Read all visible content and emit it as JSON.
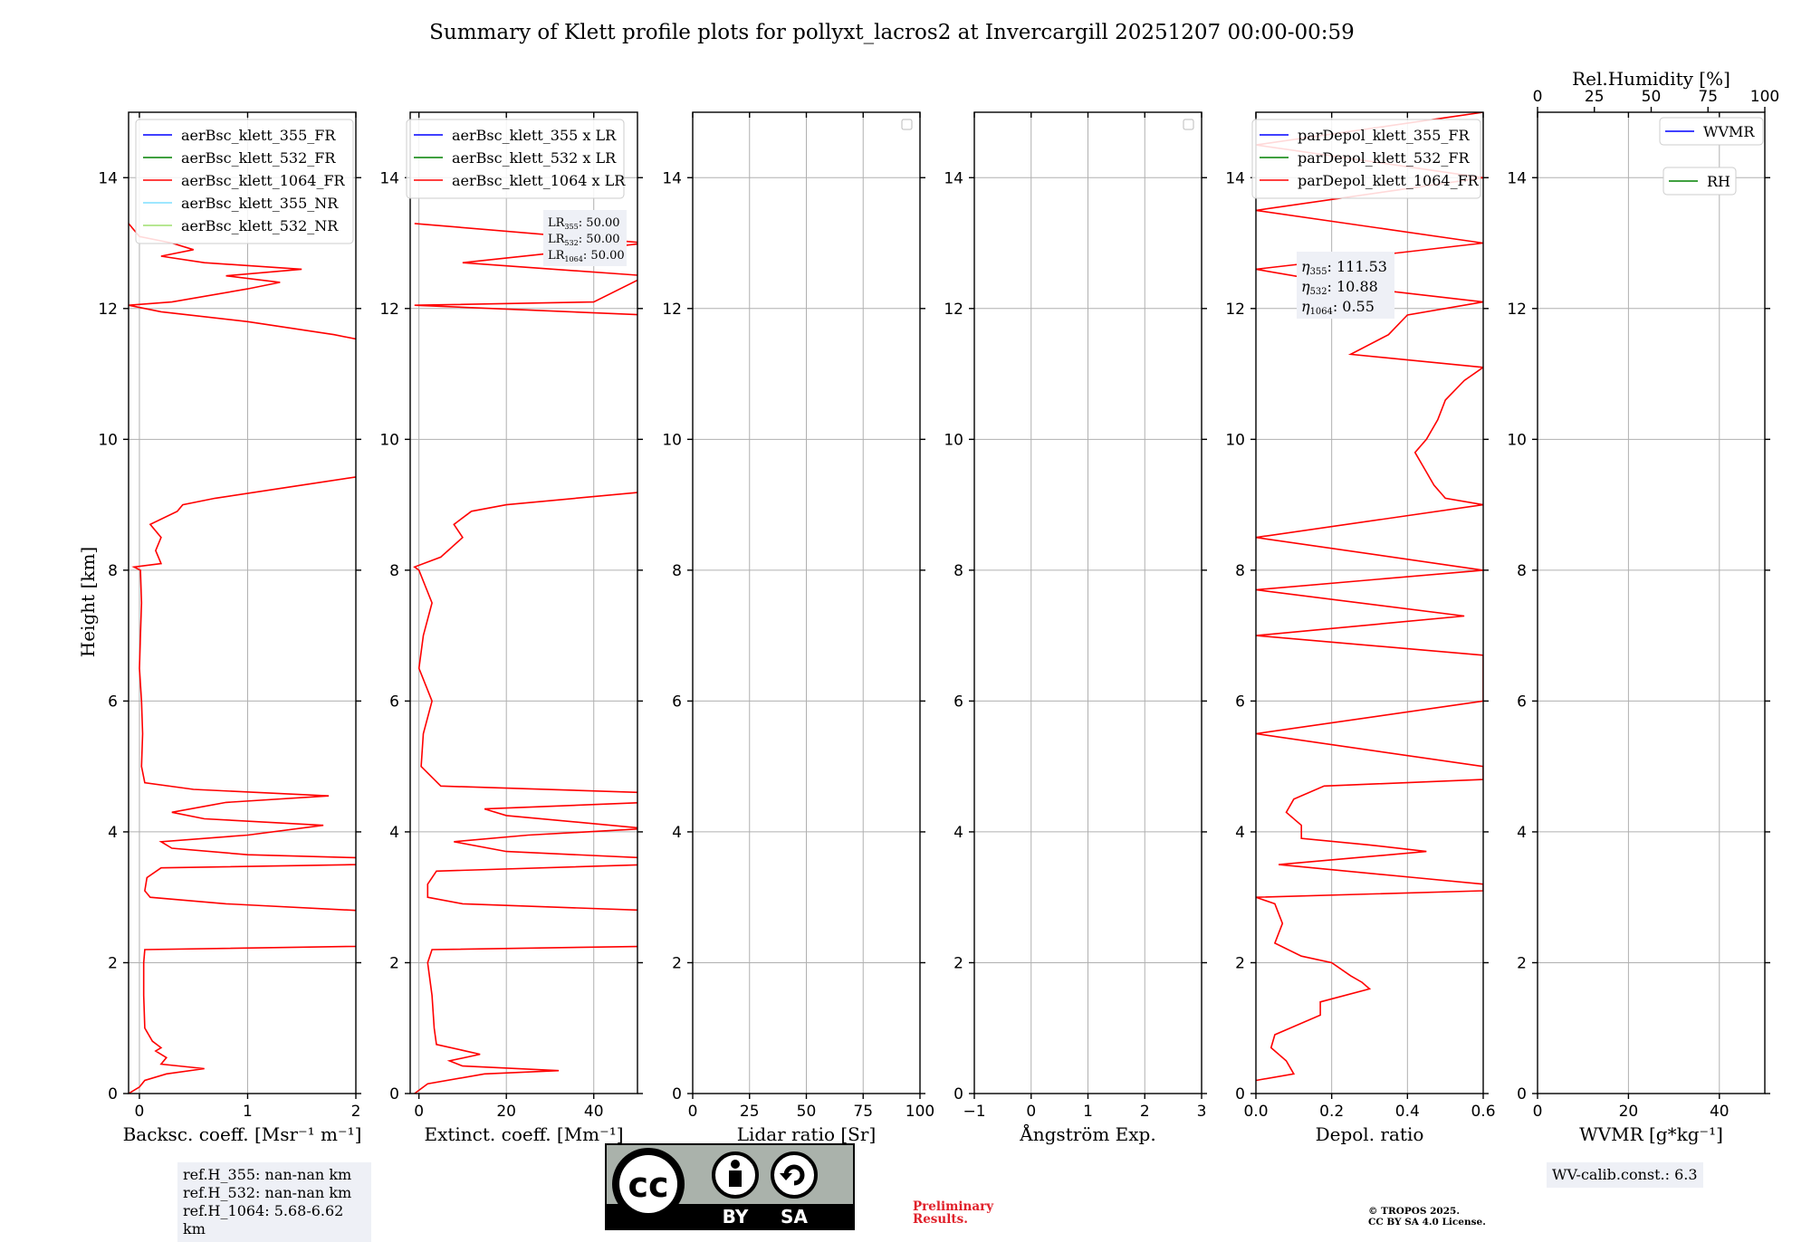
{
  "figure_title": "Summary of Klett profile plots for pollyxt_lacros2 at Invercargill 20251207 00:00-00:59",
  "colors": {
    "blue": "#0000ff",
    "green": "#008000",
    "red": "#ff0000",
    "cyan": "#7fdfff",
    "lightgreen": "#9fdf6f",
    "grid": "#b0b0b0"
  },
  "chart_data": [
    {
      "id": "backscatter",
      "type": "line",
      "xlabel": "Backsc. coeff. [Msr⁻¹ m⁻¹]",
      "ylabel": "Height [km]",
      "xlim": [
        -0.1,
        2.0
      ],
      "ylim": [
        0,
        15
      ],
      "xticks": [
        0,
        1,
        2
      ],
      "xtick_labels": [
        "0",
        "1",
        "2"
      ],
      "yticks": [
        0,
        2,
        4,
        6,
        8,
        10,
        12,
        14
      ],
      "ytick_labels": [
        "0",
        "2",
        "4",
        "6",
        "8",
        "10",
        "12",
        "14"
      ],
      "legend": [
        "aerBsc_klett_355_FR",
        "aerBsc_klett_532_FR",
        "aerBsc_klett_1064_FR",
        "aerBsc_klett_355_NR",
        "aerBsc_klett_532_NR"
      ],
      "series": [
        {
          "name": "aerBsc_klett_1064_FR",
          "color": "red",
          "profile": [
            [
              0,
              -0.1
            ],
            [
              0.1,
              0.0
            ],
            [
              0.2,
              0.05
            ],
            [
              0.3,
              0.25
            ],
            [
              0.38,
              0.6
            ],
            [
              0.45,
              0.2
            ],
            [
              0.55,
              0.25
            ],
            [
              0.65,
              0.15
            ],
            [
              0.7,
              0.2
            ],
            [
              0.8,
              0.12
            ],
            [
              1,
              0.05
            ],
            [
              1.5,
              0.04
            ],
            [
              2,
              0.04
            ],
            [
              2.2,
              0.05
            ],
            [
              2.25,
              2.0
            ],
            [
              2.3,
              2.1
            ],
            [
              2.6,
              2.1
            ],
            [
              2.8,
              2.0
            ],
            [
              2.9,
              0.8
            ],
            [
              3.0,
              0.1
            ],
            [
              3.1,
              0.05
            ],
            [
              3.3,
              0.07
            ],
            [
              3.45,
              0.2
            ],
            [
              3.5,
              2.0
            ],
            [
              3.6,
              2.1
            ],
            [
              3.65,
              1.0
            ],
            [
              3.75,
              0.3
            ],
            [
              3.85,
              0.2
            ],
            [
              3.95,
              1.0
            ],
            [
              4.1,
              1.7
            ],
            [
              4.2,
              0.6
            ],
            [
              4.3,
              0.3
            ],
            [
              4.45,
              0.8
            ],
            [
              4.55,
              1.75
            ],
            [
              4.65,
              0.5
            ],
            [
              4.75,
              0.05
            ],
            [
              5,
              0.02
            ],
            [
              5.5,
              0.03
            ],
            [
              6,
              0.02
            ],
            [
              6.5,
              0.0
            ],
            [
              7,
              0.01
            ],
            [
              7.5,
              0.02
            ],
            [
              8,
              0.01
            ],
            [
              8.05,
              -0.05
            ],
            [
              8.1,
              0.2
            ],
            [
              8.3,
              0.15
            ],
            [
              8.5,
              0.2
            ],
            [
              8.7,
              0.1
            ],
            [
              8.9,
              0.35
            ],
            [
              9.0,
              0.4
            ],
            [
              9.1,
              0.7
            ],
            [
              9.3,
              1.5
            ],
            [
              9.45,
              2.1
            ],
            [
              9.5,
              2.1
            ],
            [
              11.5,
              2.1
            ],
            [
              11.6,
              1.8
            ],
            [
              11.8,
              1.0
            ],
            [
              11.95,
              0.2
            ],
            [
              12.05,
              -0.1
            ],
            [
              12.1,
              0.3
            ],
            [
              12.3,
              1.0
            ],
            [
              12.4,
              1.3
            ],
            [
              12.5,
              0.8
            ],
            [
              12.6,
              1.5
            ],
            [
              12.7,
              0.6
            ],
            [
              12.8,
              0.2
            ],
            [
              12.9,
              0.5
            ],
            [
              13.0,
              0.3
            ],
            [
              13.1,
              0.0
            ],
            [
              13.3,
              -0.1
            ]
          ]
        }
      ]
    },
    {
      "id": "extinction",
      "type": "line",
      "xlabel": "Extinct. coeff. [Mm⁻¹]",
      "xlim": [
        -2,
        50
      ],
      "ylim": [
        0,
        15
      ],
      "xticks": [
        0,
        20,
        40
      ],
      "xtick_labels": [
        "0",
        "20",
        "40"
      ],
      "yticks": [
        0,
        2,
        4,
        6,
        8,
        10,
        12,
        14
      ],
      "ytick_labels": [
        "0",
        "2",
        "4",
        "6",
        "8",
        "10",
        "12",
        "14"
      ],
      "legend": [
        "aerBsc_klett_355 x LR",
        "aerBsc_klett_532 x LR",
        "aerBsc_klett_1064 x LR"
      ],
      "lr_annotation": [
        {
          "sub": "355",
          "value": ": 50.00"
        },
        {
          "sub": "532",
          "value": ": 50.00"
        },
        {
          "sub": "1064",
          "value": ": 50.00"
        }
      ],
      "series": [
        {
          "name": "aerBsc_klett_1064 x LR",
          "color": "red",
          "profile": [
            [
              0,
              -1
            ],
            [
              0.15,
              2
            ],
            [
              0.3,
              15
            ],
            [
              0.35,
              32
            ],
            [
              0.42,
              10
            ],
            [
              0.5,
              7
            ],
            [
              0.6,
              14
            ],
            [
              0.75,
              4
            ],
            [
              1,
              3.5
            ],
            [
              1.5,
              3
            ],
            [
              2,
              2
            ],
            [
              2.2,
              3
            ],
            [
              2.25,
              52
            ],
            [
              2.8,
              52
            ],
            [
              2.9,
              10
            ],
            [
              3.0,
              2
            ],
            [
              3.2,
              2
            ],
            [
              3.4,
              4
            ],
            [
              3.5,
              52
            ],
            [
              3.6,
              52
            ],
            [
              3.7,
              20
            ],
            [
              3.85,
              8
            ],
            [
              3.95,
              25
            ],
            [
              4.05,
              52
            ],
            [
              4.25,
              20
            ],
            [
              4.35,
              15
            ],
            [
              4.45,
              52
            ],
            [
              4.6,
              52
            ],
            [
              4.7,
              5
            ],
            [
              5,
              0.5
            ],
            [
              5.5,
              1
            ],
            [
              6,
              3
            ],
            [
              6.5,
              0
            ],
            [
              7,
              1
            ],
            [
              7.5,
              3
            ],
            [
              8,
              0
            ],
            [
              8.05,
              -1
            ],
            [
              8.2,
              5
            ],
            [
              8.5,
              10
            ],
            [
              8.7,
              8
            ],
            [
              8.9,
              12
            ],
            [
              9.0,
              20
            ],
            [
              9.2,
              52
            ],
            [
              11.9,
              52
            ],
            [
              12.05,
              -1
            ],
            [
              12.1,
              40
            ],
            [
              12.5,
              52
            ],
            [
              12.7,
              10
            ],
            [
              13.0,
              52
            ],
            [
              13.3,
              -1
            ]
          ]
        }
      ]
    },
    {
      "id": "lidar_ratio",
      "type": "line",
      "xlabel": "Lidar ratio [Sr]",
      "xlim": [
        0,
        100
      ],
      "ylim": [
        0,
        15
      ],
      "xticks": [
        0,
        25,
        50,
        75,
        100
      ],
      "xtick_labels": [
        "0",
        "25",
        "50",
        "75",
        "100"
      ],
      "yticks": [
        0,
        2,
        4,
        6,
        8,
        10,
        12,
        14
      ],
      "ytick_labels": [
        "0",
        "2",
        "4",
        "6",
        "8",
        "10",
        "12",
        "14"
      ],
      "series": []
    },
    {
      "id": "angstrom",
      "type": "line",
      "xlabel": "Ångström Exp.",
      "xlim": [
        -1,
        3
      ],
      "ylim": [
        0,
        15
      ],
      "xticks": [
        -1,
        0,
        1,
        2,
        3
      ],
      "xtick_labels": [
        "−1",
        "0",
        "1",
        "2",
        "3"
      ],
      "yticks": [
        0,
        2,
        4,
        6,
        8,
        10,
        12,
        14
      ],
      "ytick_labels": [
        "0",
        "2",
        "4",
        "6",
        "8",
        "10",
        "12",
        "14"
      ],
      "series": []
    },
    {
      "id": "depol",
      "type": "line",
      "xlabel": "Depol. ratio",
      "xlim": [
        0,
        0.6
      ],
      "ylim": [
        0,
        15
      ],
      "xticks": [
        0,
        0.2,
        0.4,
        0.6
      ],
      "xtick_labels": [
        "0.0",
        "0.2",
        "0.4",
        "0.6"
      ],
      "yticks": [
        0,
        2,
        4,
        6,
        8,
        10,
        12,
        14
      ],
      "ytick_labels": [
        "0",
        "2",
        "4",
        "6",
        "8",
        "10",
        "12",
        "14"
      ],
      "legend": [
        "parDepol_klett_355_FR",
        "parDepol_klett_532_FR",
        "parDepol_klett_1064_FR"
      ],
      "eta_annotation": [
        {
          "sub": "355",
          "value": ": 111.53"
        },
        {
          "sub": "532",
          "value": ": 10.88"
        },
        {
          "sub": "1064",
          "value": ": 0.55"
        }
      ],
      "series": [
        {
          "name": "parDepol_klett_1064_FR",
          "color": "red",
          "profile": [
            [
              0.2,
              0.0
            ],
            [
              0.3,
              0.1
            ],
            [
              0.5,
              0.08
            ],
            [
              0.7,
              0.04
            ],
            [
              0.9,
              0.05
            ],
            [
              1.2,
              0.17
            ],
            [
              1.4,
              0.17
            ],
            [
              1.6,
              0.3
            ],
            [
              1.7,
              0.28
            ],
            [
              1.8,
              0.25
            ],
            [
              2.0,
              0.2
            ],
            [
              2.1,
              0.12
            ],
            [
              2.3,
              0.05
            ],
            [
              2.6,
              0.07
            ],
            [
              2.9,
              0.05
            ],
            [
              3.0,
              0.0
            ],
            [
              3.1,
              0.6
            ],
            [
              3.2,
              0.6
            ],
            [
              3.3,
              0.42
            ],
            [
              3.5,
              0.06
            ],
            [
              3.7,
              0.45
            ],
            [
              3.8,
              0.3
            ],
            [
              3.9,
              0.12
            ],
            [
              4.1,
              0.12
            ],
            [
              4.3,
              0.08
            ],
            [
              4.5,
              0.1
            ],
            [
              4.7,
              0.18
            ],
            [
              4.8,
              0.6
            ],
            [
              5.0,
              0.6
            ],
            [
              5.5,
              0.0
            ],
            [
              6.0,
              0.6
            ],
            [
              6.7,
              0.6
            ],
            [
              7.0,
              0.0
            ],
            [
              7.3,
              0.55
            ],
            [
              7.7,
              0.0
            ],
            [
              8.0,
              0.6
            ],
            [
              8.5,
              0.0
            ],
            [
              9.0,
              0.6
            ],
            [
              9.1,
              0.5
            ],
            [
              9.3,
              0.47
            ],
            [
              9.5,
              0.45
            ],
            [
              9.8,
              0.42
            ],
            [
              10.0,
              0.45
            ],
            [
              10.3,
              0.48
            ],
            [
              10.6,
              0.5
            ],
            [
              10.9,
              0.55
            ],
            [
              11.1,
              0.6
            ],
            [
              11.3,
              0.25
            ],
            [
              11.6,
              0.35
            ],
            [
              11.9,
              0.4
            ],
            [
              12.1,
              0.6
            ],
            [
              12.3,
              0.3
            ],
            [
              12.6,
              0.0
            ],
            [
              13.0,
              0.6
            ],
            [
              13.5,
              0.0
            ],
            [
              14.0,
              0.6
            ],
            [
              14.5,
              0.0
            ],
            [
              15,
              0.6
            ]
          ]
        }
      ]
    },
    {
      "id": "wvmr",
      "type": "line",
      "xlabel": "WVMR [g*kg⁻¹]",
      "xlim": [
        0,
        50
      ],
      "ylim": [
        0,
        15
      ],
      "xticks": [
        0,
        20,
        40
      ],
      "xtick_labels": [
        "0",
        "20",
        "40"
      ],
      "yticks": [
        0,
        2,
        4,
        6,
        8,
        10,
        12,
        14
      ],
      "ytick_labels": [
        "0",
        "2",
        "4",
        "6",
        "8",
        "10",
        "12",
        "14"
      ],
      "top_axis": {
        "label": "Rel.Humidity [%]",
        "xlim": [
          0,
          100
        ],
        "xticks": [
          0,
          25,
          50,
          75,
          100
        ],
        "xtick_labels": [
          "0",
          "25",
          "50",
          "75",
          "100"
        ]
      },
      "legend": [
        "WVMR",
        "RH"
      ],
      "series": []
    }
  ],
  "ref_heights": [
    "ref.H_355: nan-nan km",
    "ref.H_532: nan-nan km",
    "ref.H_1064: 5.68-6.62 km"
  ],
  "logo": {
    "cc": "cc",
    "by": "BY",
    "sa": "SA"
  },
  "preliminary": [
    "Preliminary",
    "Results."
  ],
  "copyright": [
    "© TROPOS 2025.",
    "CC BY SA 4.0 License."
  ],
  "wv_calib": "WV-calib.const.: 6.3"
}
